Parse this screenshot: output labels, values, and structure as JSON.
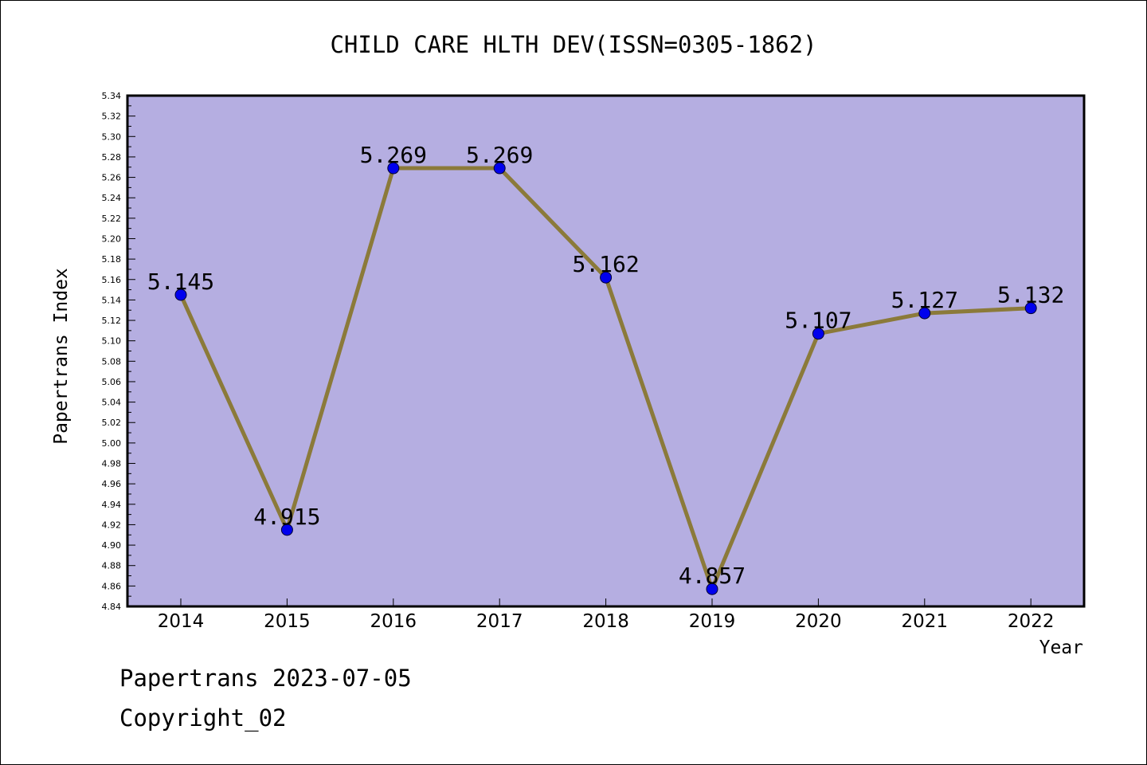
{
  "chart_data": {
    "type": "line",
    "title": "CHILD CARE HLTH DEV(ISSN=0305-1862)",
    "xlabel": "Year",
    "ylabel": "Papertrans Index",
    "categories": [
      "2014",
      "2015",
      "2016",
      "2017",
      "2018",
      "2019",
      "2020",
      "2021",
      "2022"
    ],
    "series": [
      {
        "values": [
          5.145,
          4.915,
          5.269,
          5.269,
          5.162,
          4.857,
          5.107,
          5.127,
          5.132
        ],
        "labels": [
          "5.145",
          "4.915",
          "5.269",
          "5.269",
          "5.162",
          "4.857",
          "5.107",
          "5.127",
          "5.132"
        ]
      }
    ],
    "ylim": [
      4.84,
      5.34
    ],
    "ytick_step": 0.02,
    "grid": false,
    "colors": {
      "plot_background": "#b5aee1",
      "line": "#8b7a3a",
      "marker": "#0000ee"
    }
  },
  "footer": {
    "line1": "Papertrans 2023-07-05",
    "line2": "Copyright_02"
  }
}
